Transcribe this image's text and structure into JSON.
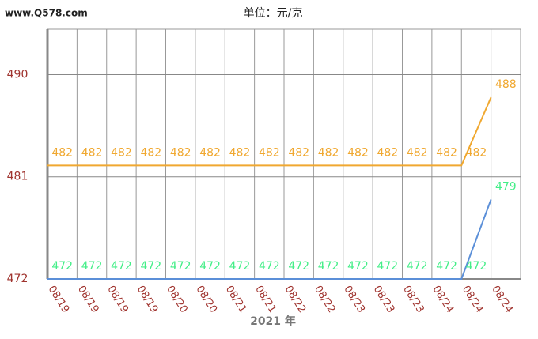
{
  "watermark": "www.Q578.com",
  "chart_data": {
    "type": "line",
    "title": "单位：元/克",
    "x_label": "2021 年",
    "categories": [
      "08/19",
      "08/19",
      "08/19",
      "08/19",
      "08/20",
      "08/20",
      "08/21",
      "08/21",
      "08/22",
      "08/22",
      "08/23",
      "08/23",
      "08/23",
      "08/24",
      "08/24",
      "08/24"
    ],
    "series": [
      {
        "color": "#f0a830",
        "label_color": "#f0a830",
        "values": [
          482,
          482,
          482,
          482,
          482,
          482,
          482,
          482,
          482,
          482,
          482,
          482,
          482,
          482,
          482,
          488
        ]
      },
      {
        "color": "#5b8fd8",
        "label_color": "#44ee88",
        "values": [
          472,
          472,
          472,
          472,
          472,
          472,
          472,
          472,
          472,
          472,
          472,
          472,
          472,
          472,
          472,
          479
        ]
      }
    ],
    "ylim": [
      472,
      494
    ],
    "yticks": [
      472,
      481,
      490
    ],
    "grid": true
  }
}
